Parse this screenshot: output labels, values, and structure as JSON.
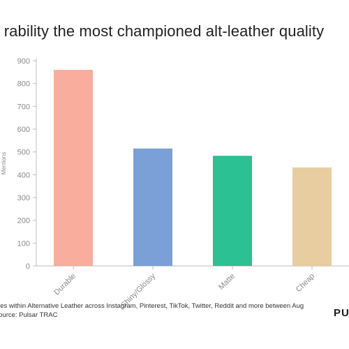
{
  "title": "rability the most championed alt-leather quality",
  "footer": {
    "line1": "alities within Alternative Leather across Instagram, Pinterest, TikTok, Twitter, Reddit and more between Aug",
    "line2": " - Source: Pulsar TRAC"
  },
  "brand": "PU",
  "chart_data": {
    "type": "bar",
    "title": "rability the most championed alt-leather quality",
    "ylabel": "Mentions",
    "xlabel": "",
    "categories": [
      "Durable",
      "Shiny/Glossy",
      "Matte",
      "Cheap"
    ],
    "values": [
      860,
      515,
      483,
      432
    ],
    "colors": [
      "#f8ad9d",
      "#7ba0d8",
      "#2bc192",
      "#e7cd9f"
    ],
    "ylim": [
      0,
      900
    ],
    "yticks": [
      0,
      100,
      200,
      300,
      400,
      500,
      600,
      700,
      800,
      900
    ],
    "grid": false
  }
}
